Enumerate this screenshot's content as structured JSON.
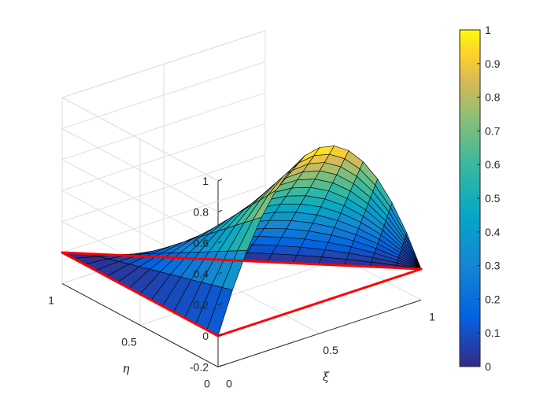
{
  "chart_data": {
    "type": "surface",
    "title": "",
    "xlabel": "ξ",
    "ylabel": "η",
    "zlabel": "",
    "x_domain": [
      0,
      1
    ],
    "y_domain": [
      0,
      1
    ],
    "zlim": [
      -0.2,
      1
    ],
    "grid": true,
    "mesh_divisions": 14,
    "surface_function": "z = 4·ξ·(1 − ξ − η) on the triangle ξ ≥ 0, η ≥ 0, ξ + η ≤ 1",
    "peak": {
      "xi": 0.5,
      "eta": 0,
      "z": 1
    },
    "element_edges": {
      "color": "#ff0000",
      "vertices": [
        [
          0,
          0
        ],
        [
          1,
          0
        ],
        [
          0,
          1
        ]
      ]
    },
    "x_ticks": [
      "0",
      "0.5",
      "1"
    ],
    "y_ticks": [
      "0",
      "0.5",
      "1"
    ],
    "z_ticks": [
      "-0.2",
      "0",
      "0.2",
      "0.4",
      "0.6",
      "0.8",
      "1"
    ],
    "colorbar": {
      "colormap": "parula",
      "range": [
        0,
        1
      ],
      "ticks": [
        "0",
        "0.1",
        "0.2",
        "0.3",
        "0.4",
        "0.5",
        "0.6",
        "0.7",
        "0.8",
        "0.9",
        "1"
      ]
    }
  }
}
